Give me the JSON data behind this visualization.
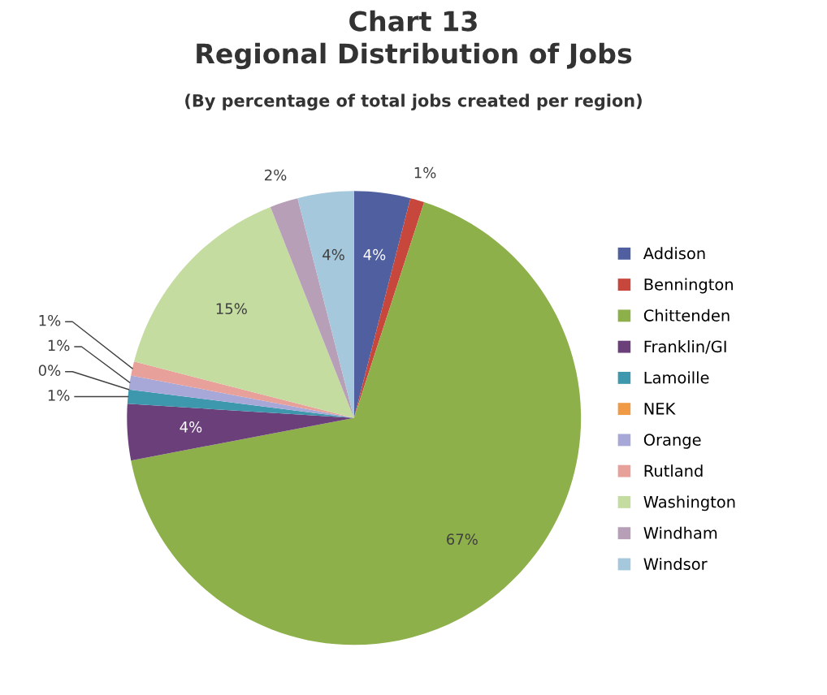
{
  "chart_data": {
    "type": "pie",
    "title": "Chart 13\nRegional Distribution of Jobs",
    "subtitle": "(By percentage of total jobs created per region)",
    "categories": [
      "Addison",
      "Bennington",
      "Chittenden",
      "Franklin/GI",
      "Lamoille",
      "NEK",
      "Orange",
      "Rutland",
      "Washington",
      "Windham",
      "Windsor"
    ],
    "values": [
      4,
      1,
      67,
      4,
      1,
      0,
      1,
      1,
      15,
      2,
      4
    ],
    "value_labels": [
      "4%",
      "1%",
      "67%",
      "4%",
      "1%",
      "0%",
      "1%",
      "1%",
      "15%",
      "2%",
      "4%"
    ],
    "colors": [
      "#4f5fa0",
      "#c8473c",
      "#8db04a",
      "#6b3f7a",
      "#3d97ad",
      "#f09a45",
      "#a8a8d8",
      "#e8a09a",
      "#c5dca0",
      "#b79fb8",
      "#a6c8dc"
    ],
    "legend": "right"
  }
}
